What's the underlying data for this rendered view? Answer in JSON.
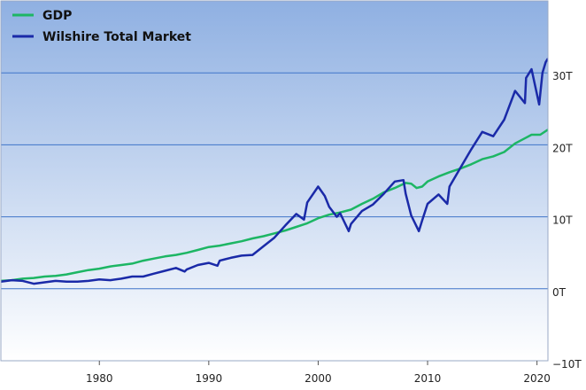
{
  "chart_data": {
    "type": "line",
    "title": "",
    "xlabel": "",
    "ylabel": "",
    "xlim": [
      1971,
      2021
    ],
    "ylim": [
      -10,
      40
    ],
    "x_ticks": [
      1980,
      1990,
      2000,
      2010,
      2020
    ],
    "x_tick_labels": [
      "1980",
      "1990",
      "2000",
      "2010",
      "2020"
    ],
    "y_ticks": [
      -10,
      0,
      10,
      20,
      30
    ],
    "y_tick_labels": [
      "−10T",
      "0T",
      "10T",
      "20T",
      "30T"
    ],
    "legend_position": "top-left",
    "grid": "horizontal",
    "background_gradient": [
      "#8fb0e2",
      "#ffffff"
    ],
    "series": [
      {
        "name": "GDP",
        "color": "#1db664",
        "x": [
          1971,
          1972,
          1973,
          1974,
          1975,
          1976,
          1977,
          1978,
          1979,
          1980,
          1981,
          1982,
          1983,
          1984,
          1985,
          1986,
          1987,
          1988,
          1989,
          1990,
          1991,
          1992,
          1993,
          1994,
          1995,
          1996,
          1997,
          1998,
          1999,
          2000,
          2001,
          2002,
          2003,
          2004,
          2005,
          2006,
          2007,
          2008,
          2008.5,
          2009,
          2009.5,
          2010,
          2011,
          2012,
          2013,
          2014,
          2015,
          2016,
          2017,
          2018,
          2019,
          2019.5,
          2020.3,
          2021
        ],
        "values": [
          1.1,
          1.2,
          1.4,
          1.5,
          1.7,
          1.8,
          2.0,
          2.3,
          2.6,
          2.8,
          3.1,
          3.3,
          3.5,
          3.9,
          4.2,
          4.5,
          4.7,
          5.0,
          5.4,
          5.8,
          6.0,
          6.3,
          6.6,
          7.0,
          7.3,
          7.7,
          8.1,
          8.6,
          9.1,
          9.8,
          10.3,
          10.6,
          11.0,
          11.8,
          12.5,
          13.4,
          14.0,
          14.7,
          14.6,
          14.0,
          14.2,
          14.9,
          15.6,
          16.2,
          16.7,
          17.3,
          18.0,
          18.4,
          19.0,
          20.2,
          21.0,
          21.4,
          21.4,
          22.1
        ]
      },
      {
        "name": "Wilshire Total Market",
        "color": "#1a2aa8",
        "x": [
          1971,
          1972,
          1973,
          1974,
          1975,
          1976,
          1977,
          1978,
          1979,
          1980,
          1981,
          1982,
          1983,
          1984,
          1985,
          1986,
          1987,
          1987.8,
          1988,
          1989,
          1990,
          1990.8,
          1991,
          1992,
          1993,
          1994,
          1995,
          1996,
          1997,
          1998,
          1998.7,
          1999,
          2000,
          2000.6,
          2001,
          2001.7,
          2002,
          2002.8,
          2003,
          2004,
          2005,
          2006,
          2007,
          2007.8,
          2008,
          2008.5,
          2009.2,
          2009.5,
          2010,
          2011,
          2011.8,
          2012,
          2013,
          2014,
          2015,
          2016,
          2017,
          2018,
          2018.9,
          2019,
          2019.5,
          2020.2,
          2020.5,
          2020.8,
          2021
        ],
        "values": [
          1.0,
          1.2,
          1.1,
          0.7,
          0.9,
          1.1,
          1.0,
          1.0,
          1.1,
          1.3,
          1.2,
          1.4,
          1.7,
          1.7,
          2.1,
          2.5,
          2.9,
          2.4,
          2.7,
          3.3,
          3.6,
          3.2,
          3.9,
          4.3,
          4.6,
          4.7,
          5.9,
          7.1,
          8.8,
          10.4,
          9.6,
          12.0,
          14.2,
          12.9,
          11.4,
          10.0,
          10.5,
          8.0,
          9.0,
          10.8,
          11.7,
          13.2,
          14.9,
          15.1,
          13.2,
          10.2,
          8.0,
          9.5,
          11.8,
          13.1,
          11.8,
          14.2,
          16.8,
          19.4,
          21.8,
          21.2,
          23.5,
          27.5,
          25.8,
          29.3,
          30.5,
          25.6,
          30.0,
          31.5,
          32.0
        ]
      }
    ]
  }
}
